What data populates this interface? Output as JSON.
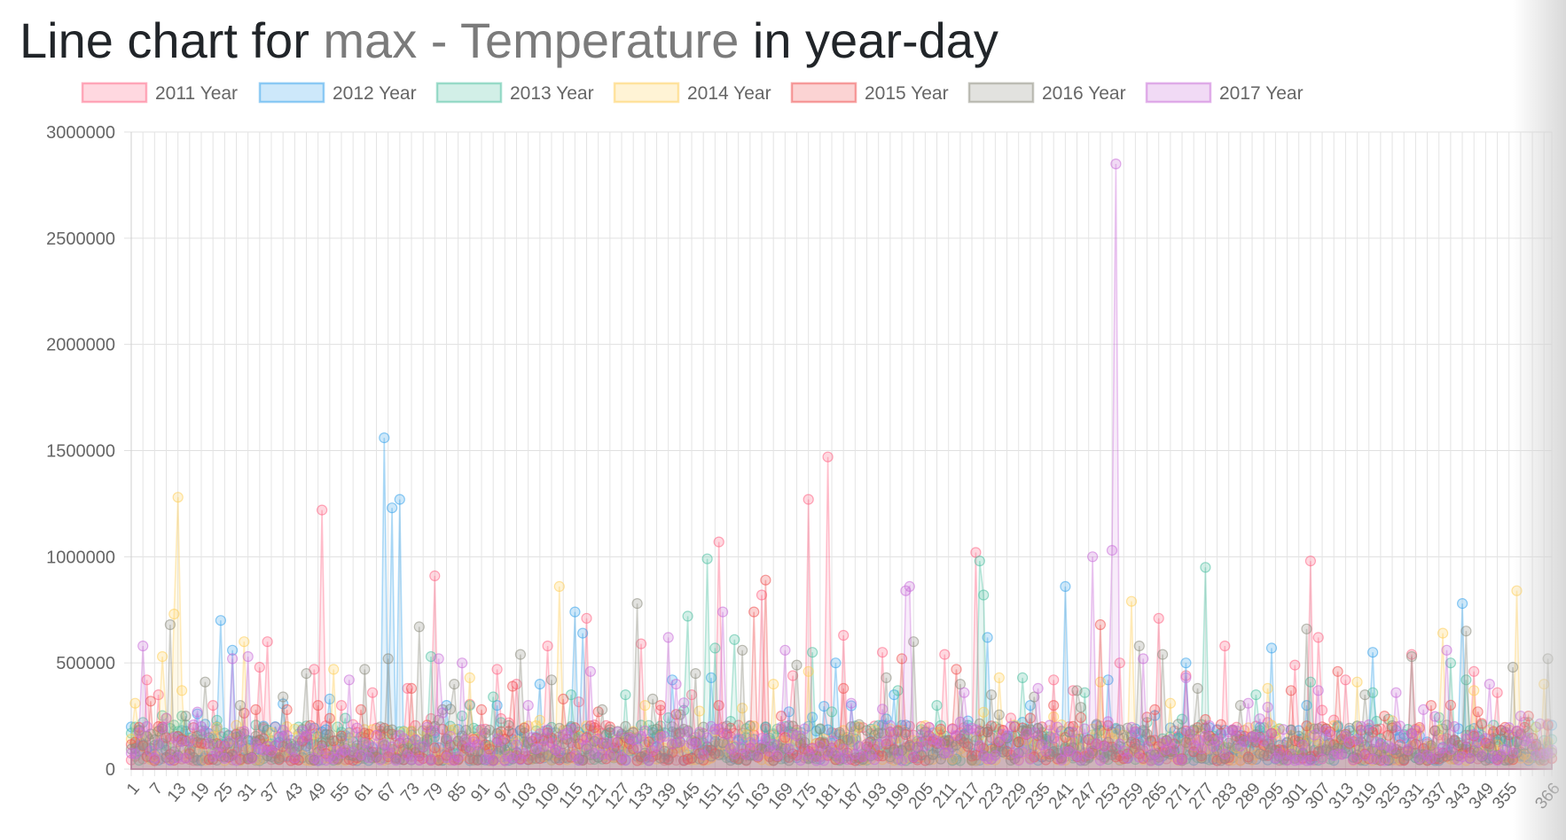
{
  "title": {
    "prefix": "Line chart for ",
    "field": "max",
    "separator": " - ",
    "metric": "Temperature",
    "suffix": " in year-day"
  },
  "chart_data": {
    "type": "line",
    "title": "Line chart for max - Temperature in year-day",
    "xlabel": "",
    "ylabel": "",
    "ylim": [
      0,
      3000000
    ],
    "y_ticks": [
      0,
      500000,
      1000000,
      1500000,
      2000000,
      2500000,
      3000000
    ],
    "y_tick_labels": [
      "0",
      "500000",
      "1000000",
      "1500000",
      "2000000",
      "2500000",
      "3000000"
    ],
    "x_range": [
      1,
      366
    ],
    "x_tick_labels": [
      "1",
      "7",
      "13",
      "19",
      "25",
      "31",
      "37",
      "43",
      "49",
      "55",
      "61",
      "67",
      "73",
      "79",
      "85",
      "91",
      "97",
      "103",
      "109",
      "115",
      "121",
      "127",
      "133",
      "139",
      "145",
      "151",
      "157",
      "163",
      "169",
      "175",
      "181",
      "187",
      "193",
      "199",
      "205",
      "211",
      "217",
      "223",
      "229",
      "235",
      "241",
      "247",
      "253",
      "259",
      "265",
      "271",
      "277",
      "283",
      "289",
      "295",
      "301",
      "307",
      "313",
      "319",
      "325",
      "331",
      "337",
      "343",
      "349",
      "355",
      "366"
    ],
    "grid": true,
    "legend_position": "top",
    "series": [
      {
        "name": "2011 Year",
        "color": "#ff6384",
        "peaks": [
          [
            3,
            180000
          ],
          [
            5,
            420000
          ],
          [
            8,
            350000
          ],
          [
            22,
            300000
          ],
          [
            34,
            480000
          ],
          [
            36,
            600000
          ],
          [
            48,
            470000
          ],
          [
            50,
            1220000
          ],
          [
            55,
            300000
          ],
          [
            63,
            360000
          ],
          [
            72,
            380000
          ],
          [
            79,
            910000
          ],
          [
            95,
            470000
          ],
          [
            100,
            400000
          ],
          [
            108,
            580000
          ],
          [
            118,
            710000
          ],
          [
            132,
            590000
          ],
          [
            145,
            350000
          ],
          [
            152,
            1070000
          ],
          [
            163,
            820000
          ],
          [
            171,
            440000
          ],
          [
            175,
            1270000
          ],
          [
            180,
            1470000
          ],
          [
            184,
            630000
          ],
          [
            194,
            550000
          ],
          [
            210,
            540000
          ],
          [
            218,
            1020000
          ],
          [
            238,
            420000
          ],
          [
            243,
            370000
          ],
          [
            255,
            500000
          ],
          [
            265,
            710000
          ],
          [
            272,
            440000
          ],
          [
            282,
            580000
          ],
          [
            300,
            490000
          ],
          [
            304,
            980000
          ],
          [
            306,
            620000
          ],
          [
            313,
            420000
          ],
          [
            330,
            540000
          ],
          [
            346,
            460000
          ],
          [
            352,
            360000
          ]
        ]
      },
      {
        "name": "2012 Year",
        "color": "#36a2eb",
        "peaks": [
          [
            2,
            120000
          ],
          [
            18,
            260000
          ],
          [
            24,
            700000
          ],
          [
            27,
            560000
          ],
          [
            38,
            200000
          ],
          [
            52,
            330000
          ],
          [
            66,
            1560000
          ],
          [
            68,
            1230000
          ],
          [
            70,
            1270000
          ],
          [
            82,
            300000
          ],
          [
            95,
            300000
          ],
          [
            106,
            400000
          ],
          [
            115,
            740000
          ],
          [
            117,
            640000
          ],
          [
            140,
            420000
          ],
          [
            150,
            430000
          ],
          [
            170,
            270000
          ],
          [
            182,
            500000
          ],
          [
            197,
            350000
          ],
          [
            221,
            620000
          ],
          [
            232,
            300000
          ],
          [
            241,
            860000
          ],
          [
            252,
            420000
          ],
          [
            272,
            500000
          ],
          [
            294,
            570000
          ],
          [
            303,
            300000
          ],
          [
            320,
            550000
          ],
          [
            343,
            780000
          ],
          [
            362,
            100000
          ]
        ]
      },
      {
        "name": "2013 Year",
        "color": "#4bc0a0",
        "peaks": [
          [
            4,
            220000
          ],
          [
            14,
            250000
          ],
          [
            23,
            230000
          ],
          [
            42,
            100000
          ],
          [
            56,
            240000
          ],
          [
            78,
            530000
          ],
          [
            88,
            300000
          ],
          [
            94,
            340000
          ],
          [
            105,
            180000
          ],
          [
            114,
            350000
          ],
          [
            128,
            350000
          ],
          [
            144,
            720000
          ],
          [
            149,
            990000
          ],
          [
            151,
            570000
          ],
          [
            156,
            610000
          ],
          [
            176,
            550000
          ],
          [
            181,
            270000
          ],
          [
            198,
            370000
          ],
          [
            208,
            300000
          ],
          [
            219,
            980000
          ],
          [
            220,
            820000
          ],
          [
            230,
            430000
          ],
          [
            246,
            360000
          ],
          [
            262,
            220000
          ],
          [
            277,
            950000
          ],
          [
            290,
            350000
          ],
          [
            304,
            410000
          ],
          [
            320,
            360000
          ],
          [
            340,
            500000
          ],
          [
            344,
            420000
          ],
          [
            360,
            220000
          ]
        ]
      },
      {
        "name": "2014 Year",
        "color": "#ffce56",
        "peaks": [
          [
            2,
            310000
          ],
          [
            9,
            530000
          ],
          [
            12,
            730000
          ],
          [
            13,
            1280000
          ],
          [
            14,
            370000
          ],
          [
            30,
            600000
          ],
          [
            53,
            470000
          ],
          [
            88,
            430000
          ],
          [
            111,
            860000
          ],
          [
            133,
            300000
          ],
          [
            166,
            400000
          ],
          [
            175,
            460000
          ],
          [
            224,
            430000
          ],
          [
            250,
            410000
          ],
          [
            258,
            790000
          ],
          [
            268,
            310000
          ],
          [
            293,
            380000
          ],
          [
            316,
            410000
          ],
          [
            338,
            640000
          ],
          [
            346,
            370000
          ],
          [
            357,
            840000
          ],
          [
            364,
            400000
          ]
        ]
      },
      {
        "name": "2015 Year",
        "color": "#f05050",
        "peaks": [
          [
            6,
            320000
          ],
          [
            33,
            280000
          ],
          [
            41,
            280000
          ],
          [
            49,
            300000
          ],
          [
            60,
            280000
          ],
          [
            73,
            380000
          ],
          [
            91,
            280000
          ],
          [
            99,
            390000
          ],
          [
            112,
            330000
          ],
          [
            121,
            270000
          ],
          [
            137,
            300000
          ],
          [
            152,
            300000
          ],
          [
            161,
            740000
          ],
          [
            164,
            890000
          ],
          [
            168,
            250000
          ],
          [
            184,
            380000
          ],
          [
            199,
            520000
          ],
          [
            213,
            470000
          ],
          [
            232,
            240000
          ],
          [
            250,
            680000
          ],
          [
            264,
            280000
          ],
          [
            281,
            210000
          ],
          [
            299,
            370000
          ],
          [
            311,
            460000
          ],
          [
            323,
            250000
          ],
          [
            335,
            300000
          ],
          [
            347,
            270000
          ],
          [
            360,
            250000
          ]
        ]
      },
      {
        "name": "2016 Year",
        "color": "#8c8c7e",
        "peaks": [
          [
            11,
            680000
          ],
          [
            15,
            250000
          ],
          [
            20,
            410000
          ],
          [
            29,
            300000
          ],
          [
            40,
            340000
          ],
          [
            46,
            450000
          ],
          [
            61,
            470000
          ],
          [
            67,
            520000
          ],
          [
            75,
            670000
          ],
          [
            84,
            400000
          ],
          [
            101,
            540000
          ],
          [
            109,
            420000
          ],
          [
            122,
            280000
          ],
          [
            131,
            780000
          ],
          [
            135,
            330000
          ],
          [
            146,
            450000
          ],
          [
            158,
            560000
          ],
          [
            172,
            490000
          ],
          [
            188,
            210000
          ],
          [
            195,
            430000
          ],
          [
            202,
            600000
          ],
          [
            214,
            400000
          ],
          [
            222,
            350000
          ],
          [
            233,
            340000
          ],
          [
            244,
            370000
          ],
          [
            260,
            580000
          ],
          [
            266,
            540000
          ],
          [
            275,
            380000
          ],
          [
            286,
            300000
          ],
          [
            303,
            660000
          ],
          [
            318,
            350000
          ],
          [
            330,
            530000
          ],
          [
            344,
            650000
          ],
          [
            356,
            480000
          ],
          [
            365,
            520000
          ]
        ]
      },
      {
        "name": "2017 Year",
        "color": "#c86cd8",
        "peaks": [
          [
            4,
            580000
          ],
          [
            10,
            240000
          ],
          [
            27,
            520000
          ],
          [
            31,
            530000
          ],
          [
            57,
            420000
          ],
          [
            80,
            520000
          ],
          [
            86,
            500000
          ],
          [
            103,
            300000
          ],
          [
            119,
            460000
          ],
          [
            139,
            620000
          ],
          [
            141,
            400000
          ],
          [
            153,
            740000
          ],
          [
            169,
            560000
          ],
          [
            186,
            310000
          ],
          [
            200,
            840000
          ],
          [
            201,
            860000
          ],
          [
            215,
            360000
          ],
          [
            234,
            380000
          ],
          [
            248,
            1000000
          ],
          [
            253,
            1030000
          ],
          [
            254,
            2850000
          ],
          [
            261,
            520000
          ],
          [
            272,
            430000
          ],
          [
            288,
            310000
          ],
          [
            306,
            370000
          ],
          [
            326,
            360000
          ],
          [
            339,
            560000
          ],
          [
            350,
            400000
          ],
          [
            358,
            250000
          ]
        ]
      }
    ]
  }
}
